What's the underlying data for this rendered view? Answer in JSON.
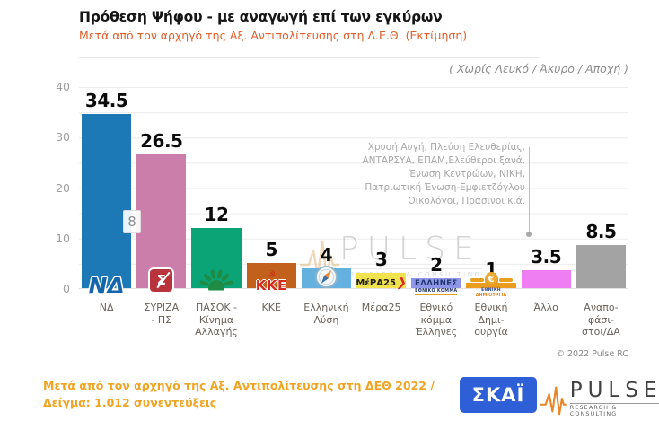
{
  "chart_data": {
    "type": "bar",
    "title": "Πρόθεση Ψήφου - με αναγωγή επί των εγκύρων",
    "subtitle": "Μετά από τον αρχηγό της Αξ. Αντιπολίτευσης στη Δ.Ε.Θ.  (Εκτίμηση)",
    "note": "( Χωρίς Λευκό / Άκυρο / Αποχή )",
    "categories": [
      "ΝΔ",
      "ΣΥΡΙΖΑ - ΠΣ",
      "ΠΑΣΟΚ - Κίνημα Αλλαγής",
      "ΚΚΕ",
      "Ελληνική Λύση",
      "Μέρα25",
      "Εθνικό κόμμα Έλληνες",
      "Εθνική Δημιουργία",
      "Άλλο",
      "Αναποφάσιστοι/ΔΑ"
    ],
    "category_lines": [
      [
        "ΝΔ"
      ],
      [
        "ΣΥΡΙΖΑ",
        "- ΠΣ"
      ],
      [
        "ΠΑΣΟΚ -",
        "Κίνημα",
        "Αλλαγής"
      ],
      [
        "ΚΚΕ"
      ],
      [
        "Ελληνική",
        "Λύση"
      ],
      [
        "Μέρα25"
      ],
      [
        "Εθνικό",
        "κόμμα",
        "Έλληνες"
      ],
      [
        "Εθνική",
        "Δημι-",
        "ουργία"
      ],
      [
        "Άλλο"
      ],
      [
        "Αναπο-",
        "φάσι-",
        "στοι/ΔΑ"
      ]
    ],
    "values": [
      34.5,
      26.5,
      12,
      5,
      4,
      3,
      2,
      1,
      3.5,
      8.5
    ],
    "value_labels": [
      "34.5",
      "26.5",
      "12",
      "5",
      "4",
      "3",
      "2",
      "1",
      "3.5",
      "8.5"
    ],
    "colors": [
      "#1c79b6",
      "#cb7ea9",
      "#0aa477",
      "#c2611b",
      "#64b1e0",
      "#f1e24e",
      "#8d96e9",
      "#eb9b1e",
      "#ee7ef2",
      "#a3a3a3"
    ],
    "logos": [
      "nd-logo",
      "syriza-logo",
      "pasok-logo",
      "kke-logo",
      "elliniki-lysi-logo",
      "mera25-logo",
      "ellines-logo",
      "ethniki-dimiourgia-logo",
      "",
      ""
    ],
    "ylabel": "",
    "xlabel": "",
    "ylim": [
      0,
      40
    ],
    "yticks": [
      40,
      30,
      20,
      10,
      0
    ],
    "grid_step": 5,
    "grid": "on",
    "legend": "none",
    "diff_label": "8",
    "annotation": {
      "lines": [
        "Χρυσή Αυγή, Πλεύση Ελευθερίας,",
        "ΑΝΤΑΡΣΥΑ, ΕΠΑΜ,Ελεύθεροι ξανά,",
        "Ένωση Κεντρώων,  ΝΙΚΗ,",
        "Πατριωτική Ένωση-Εμφιετζόγλου",
        "Οικολόγοι, Πράσινοι  κ.ά.",
        ""
      ],
      "points_to": "Άλλο"
    }
  },
  "logo_text": {
    "nd": "ΝΔ",
    "syriza_sigma": "Σ",
    "kke_hs": "☭",
    "kke": "ΚΚΕ",
    "mera25": "ΜέΡΑ25",
    "mera25_arrow": "❯",
    "ellines_main": "ΕΛΛΗΝΕΣ",
    "ellines_sub": "ΕΘΝΙΚΟ ΚΟΜΜΑ",
    "ed_euro": "€",
    "ed_line1": "ΕΘΝΙΚΗ",
    "ed_line2": "ΔΗΜΙΟΥΡΓΙΑ"
  },
  "watermark": {
    "text": "PULSE",
    "subtext": "RESEARCH & CONSULTING"
  },
  "copyright": "© 2022 Pulse RC",
  "footer": {
    "line1": "Μετά από τον αρχηγό της Αξ. Αντιπολίτευσης στη ΔΕΘ  2022  /",
    "line2": "Δείγμα:  1.012 συνεντεύξεις",
    "skai_label": "ΣΚΑΪ",
    "pulse_label": "PULSE",
    "pulse_sub": "RESEARCH & CONSULTING"
  }
}
